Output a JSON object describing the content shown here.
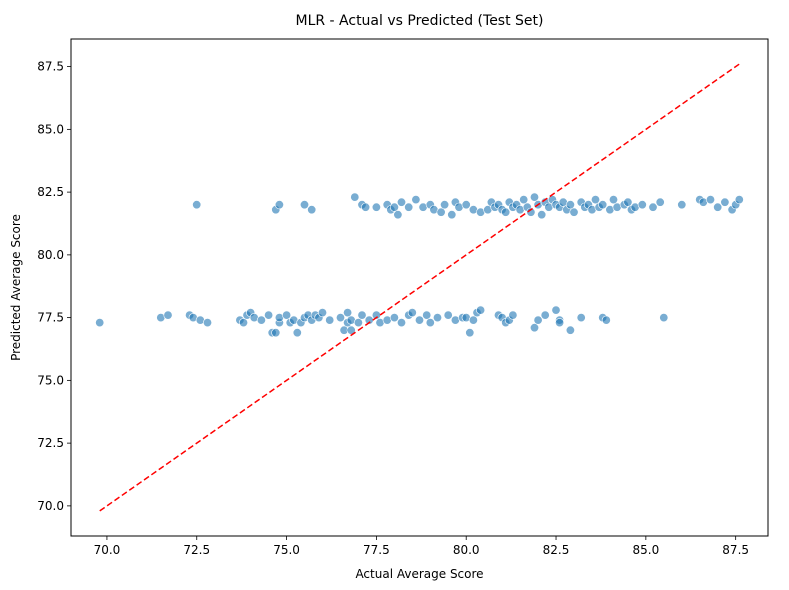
{
  "chart_data": {
    "type": "scatter",
    "title": "MLR - Actual vs Predicted (Test Set)",
    "xlabel": "Actual Average Score",
    "ylabel": "Predicted Average Score",
    "xlim": [
      69.0,
      88.4
    ],
    "ylim": [
      68.8,
      88.6
    ],
    "xticks": [
      70.0,
      72.5,
      75.0,
      77.5,
      80.0,
      82.5,
      85.0,
      87.5
    ],
    "xtick_labels": [
      "70.0",
      "72.5",
      "75.0",
      "77.5",
      "80.0",
      "82.5",
      "85.0",
      "87.5"
    ],
    "yticks": [
      70.0,
      72.5,
      75.0,
      77.5,
      80.0,
      82.5,
      85.0,
      87.5
    ],
    "ytick_labels": [
      "70.0",
      "72.5",
      "75.0",
      "77.5",
      "80.0",
      "82.5",
      "85.0",
      "87.5"
    ],
    "grid": false,
    "point_color": "#1f77b4",
    "reference_line": {
      "from": [
        69.8,
        69.8
      ],
      "to": [
        87.6,
        87.6
      ],
      "color": "#ff0000",
      "style": "dashed"
    },
    "series": [
      {
        "points": [
          [
            69.8,
            77.3
          ],
          [
            71.5,
            77.5
          ],
          [
            71.7,
            77.6
          ],
          [
            72.3,
            77.6
          ],
          [
            72.4,
            77.5
          ],
          [
            72.6,
            77.4
          ],
          [
            72.8,
            77.3
          ],
          [
            73.7,
            77.4
          ],
          [
            73.8,
            77.3
          ],
          [
            73.9,
            77.6
          ],
          [
            74.0,
            77.7
          ],
          [
            74.1,
            77.5
          ],
          [
            74.3,
            77.4
          ],
          [
            74.5,
            77.6
          ],
          [
            74.6,
            76.9
          ],
          [
            74.7,
            76.9
          ],
          [
            74.8,
            77.3
          ],
          [
            74.8,
            77.5
          ],
          [
            75.0,
            77.6
          ],
          [
            75.1,
            77.3
          ],
          [
            75.2,
            77.4
          ],
          [
            75.3,
            76.9
          ],
          [
            75.4,
            77.3
          ],
          [
            75.5,
            77.5
          ],
          [
            75.6,
            77.6
          ],
          [
            75.7,
            77.4
          ],
          [
            75.8,
            77.6
          ],
          [
            75.9,
            77.5
          ],
          [
            76.0,
            77.7
          ],
          [
            76.2,
            77.4
          ],
          [
            76.5,
            77.5
          ],
          [
            76.6,
            77.0
          ],
          [
            76.7,
            77.7
          ],
          [
            76.7,
            77.3
          ],
          [
            76.8,
            77.4
          ],
          [
            76.8,
            77.0
          ],
          [
            77.0,
            77.3
          ],
          [
            77.1,
            77.6
          ],
          [
            77.3,
            77.4
          ],
          [
            77.5,
            77.6
          ],
          [
            77.6,
            77.3
          ],
          [
            77.8,
            77.4
          ],
          [
            78.0,
            77.5
          ],
          [
            78.2,
            77.3
          ],
          [
            78.4,
            77.6
          ],
          [
            78.5,
            77.7
          ],
          [
            78.7,
            77.4
          ],
          [
            78.9,
            77.6
          ],
          [
            79.0,
            77.3
          ],
          [
            79.2,
            77.5
          ],
          [
            79.5,
            77.6
          ],
          [
            79.7,
            77.4
          ],
          [
            79.9,
            77.5
          ],
          [
            80.0,
            77.5
          ],
          [
            80.1,
            76.9
          ],
          [
            80.2,
            77.4
          ],
          [
            80.3,
            77.7
          ],
          [
            80.4,
            77.8
          ],
          [
            80.9,
            77.6
          ],
          [
            81.0,
            77.5
          ],
          [
            81.1,
            77.3
          ],
          [
            81.2,
            77.4
          ],
          [
            81.3,
            77.6
          ],
          [
            81.9,
            77.1
          ],
          [
            82.0,
            77.4
          ],
          [
            82.2,
            77.6
          ],
          [
            82.5,
            77.8
          ],
          [
            82.6,
            77.4
          ],
          [
            82.6,
            77.3
          ],
          [
            82.9,
            77.0
          ],
          [
            83.2,
            77.5
          ],
          [
            83.8,
            77.5
          ],
          [
            83.9,
            77.4
          ],
          [
            85.5,
            77.5
          ],
          [
            72.5,
            82.0
          ],
          [
            74.7,
            81.8
          ],
          [
            74.8,
            82.0
          ],
          [
            75.5,
            82.0
          ],
          [
            75.7,
            81.8
          ],
          [
            76.9,
            82.3
          ],
          [
            77.1,
            82.0
          ],
          [
            77.2,
            81.9
          ],
          [
            77.5,
            81.9
          ],
          [
            77.8,
            82.0
          ],
          [
            77.9,
            81.8
          ],
          [
            78.0,
            81.9
          ],
          [
            78.1,
            81.6
          ],
          [
            78.2,
            82.1
          ],
          [
            78.4,
            81.9
          ],
          [
            78.6,
            82.2
          ],
          [
            78.8,
            81.9
          ],
          [
            79.0,
            82.0
          ],
          [
            79.1,
            81.8
          ],
          [
            79.3,
            81.7
          ],
          [
            79.4,
            82.0
          ],
          [
            79.6,
            81.6
          ],
          [
            79.7,
            82.1
          ],
          [
            79.8,
            81.9
          ],
          [
            80.0,
            82.0
          ],
          [
            80.2,
            81.8
          ],
          [
            80.4,
            81.7
          ],
          [
            80.6,
            81.8
          ],
          [
            80.7,
            82.1
          ],
          [
            80.8,
            81.9
          ],
          [
            80.9,
            82.0
          ],
          [
            81.0,
            81.8
          ],
          [
            81.1,
            81.7
          ],
          [
            81.2,
            82.1
          ],
          [
            81.3,
            81.9
          ],
          [
            81.4,
            82.0
          ],
          [
            81.5,
            81.8
          ],
          [
            81.6,
            82.2
          ],
          [
            81.7,
            81.9
          ],
          [
            81.8,
            81.7
          ],
          [
            81.9,
            82.3
          ],
          [
            82.0,
            82.0
          ],
          [
            82.1,
            81.6
          ],
          [
            82.2,
            82.1
          ],
          [
            82.3,
            81.9
          ],
          [
            82.4,
            82.2
          ],
          [
            82.5,
            82.0
          ],
          [
            82.6,
            81.9
          ],
          [
            82.7,
            82.1
          ],
          [
            82.8,
            81.8
          ],
          [
            82.9,
            82.0
          ],
          [
            83.0,
            81.7
          ],
          [
            83.2,
            82.1
          ],
          [
            83.3,
            81.9
          ],
          [
            83.4,
            82.0
          ],
          [
            83.5,
            81.8
          ],
          [
            83.6,
            82.2
          ],
          [
            83.7,
            81.9
          ],
          [
            83.8,
            82.0
          ],
          [
            84.0,
            81.8
          ],
          [
            84.1,
            82.2
          ],
          [
            84.2,
            81.9
          ],
          [
            84.4,
            82.0
          ],
          [
            84.5,
            82.1
          ],
          [
            84.6,
            81.8
          ],
          [
            84.7,
            81.9
          ],
          [
            84.9,
            82.0
          ],
          [
            85.2,
            81.9
          ],
          [
            85.4,
            82.1
          ],
          [
            86.0,
            82.0
          ],
          [
            86.5,
            82.2
          ],
          [
            86.6,
            82.1
          ],
          [
            86.8,
            82.2
          ],
          [
            87.0,
            81.9
          ],
          [
            87.2,
            82.1
          ],
          [
            87.4,
            81.8
          ],
          [
            87.5,
            82.0
          ],
          [
            87.6,
            82.2
          ]
        ]
      }
    ]
  }
}
